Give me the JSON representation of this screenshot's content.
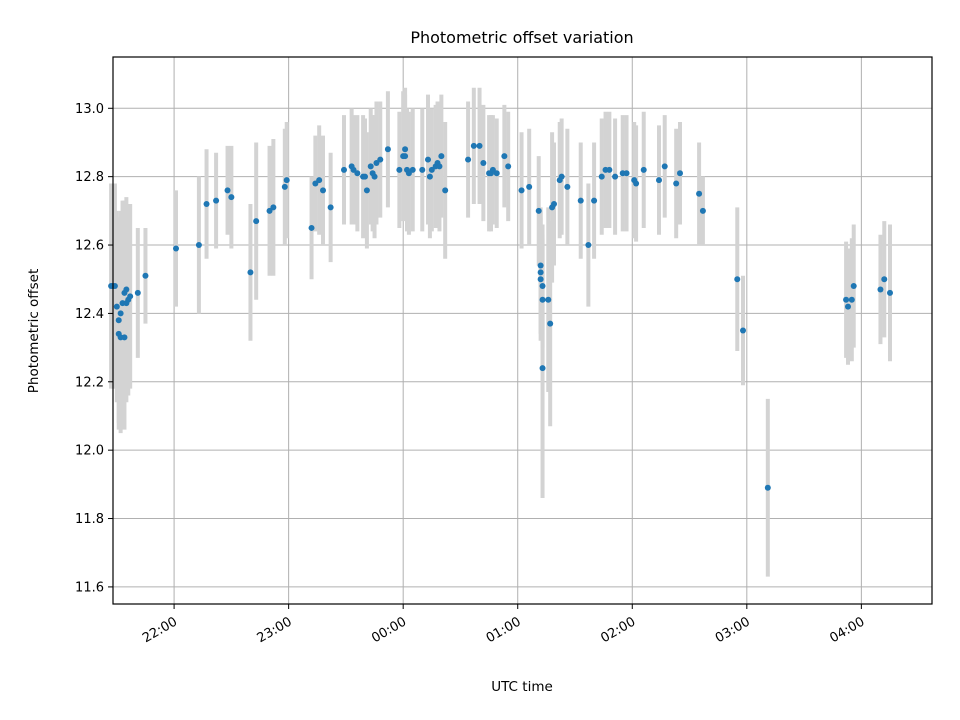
{
  "chart_data": {
    "type": "scatter",
    "title": "Photometric offset variation",
    "xlabel": "UTC time",
    "ylabel": "Photometric offset",
    "xlim": [
      "21:28",
      "04:37"
    ],
    "ylim": [
      11.55,
      13.15
    ],
    "x_ticks": [
      "22:00",
      "23:00",
      "00:00",
      "01:00",
      "02:00",
      "03:00",
      "04:00"
    ],
    "y_ticks": [
      "11.6",
      "11.8",
      "12.0",
      "12.2",
      "12.4",
      "12.6",
      "12.8",
      "13.0"
    ],
    "grid": true,
    "colors": {
      "point": "#1f77b4",
      "errorbar": "#d3d3d3",
      "grid": "#b0b0b0"
    },
    "series": [
      {
        "points": [
          {
            "x": "21:27",
            "y": 12.48,
            "yerr": 0.3
          },
          {
            "x": "21:28",
            "y": 12.48,
            "yerr": 0.3
          },
          {
            "x": "21:29",
            "y": 12.48,
            "yerr": 0.3
          },
          {
            "x": "21:30",
            "y": 12.42,
            "yerr": 0.28
          },
          {
            "x": "21:31",
            "y": 12.34,
            "yerr": 0.28
          },
          {
            "x": "21:31",
            "y": 12.38,
            "yerr": 0.3
          },
          {
            "x": "21:32",
            "y": 12.33,
            "yerr": 0.28
          },
          {
            "x": "21:32",
            "y": 12.4,
            "yerr": 0.3
          },
          {
            "x": "21:33",
            "y": 12.43,
            "yerr": 0.3
          },
          {
            "x": "21:34",
            "y": 12.46,
            "yerr": 0.27
          },
          {
            "x": "21:34",
            "y": 12.33,
            "yerr": 0.27
          },
          {
            "x": "21:35",
            "y": 12.47,
            "yerr": 0.27
          },
          {
            "x": "21:35",
            "y": 12.43,
            "yerr": 0.29
          },
          {
            "x": "21:36",
            "y": 12.44,
            "yerr": 0.28
          },
          {
            "x": "21:37",
            "y": 12.45,
            "yerr": 0.27
          },
          {
            "x": "21:41",
            "y": 12.46,
            "yerr": 0.19
          },
          {
            "x": "21:45",
            "y": 12.51,
            "yerr": 0.14
          },
          {
            "x": "22:01",
            "y": 12.59,
            "yerr": 0.17
          },
          {
            "x": "22:13",
            "y": 12.6,
            "yerr": 0.2
          },
          {
            "x": "22:17",
            "y": 12.72,
            "yerr": 0.16
          },
          {
            "x": "22:22",
            "y": 12.73,
            "yerr": 0.14
          },
          {
            "x": "22:28",
            "y": 12.76,
            "yerr": 0.13
          },
          {
            "x": "22:30",
            "y": 12.74,
            "yerr": 0.15
          },
          {
            "x": "22:40",
            "y": 12.52,
            "yerr": 0.2
          },
          {
            "x": "22:43",
            "y": 12.67,
            "yerr": 0.23
          },
          {
            "x": "22:50",
            "y": 12.7,
            "yerr": 0.19
          },
          {
            "x": "22:52",
            "y": 12.71,
            "yerr": 0.2
          },
          {
            "x": "22:58",
            "y": 12.77,
            "yerr": 0.17
          },
          {
            "x": "22:59",
            "y": 12.79,
            "yerr": 0.17
          },
          {
            "x": "23:12",
            "y": 12.65,
            "yerr": 0.15
          },
          {
            "x": "23:14",
            "y": 12.78,
            "yerr": 0.14
          },
          {
            "x": "23:16",
            "y": 12.79,
            "yerr": 0.16
          },
          {
            "x": "23:18",
            "y": 12.76,
            "yerr": 0.16
          },
          {
            "x": "23:22",
            "y": 12.71,
            "yerr": 0.16
          },
          {
            "x": "23:29",
            "y": 12.82,
            "yerr": 0.16
          },
          {
            "x": "23:33",
            "y": 12.83,
            "yerr": 0.17
          },
          {
            "x": "23:34",
            "y": 12.82,
            "yerr": 0.16
          },
          {
            "x": "23:36",
            "y": 12.81,
            "yerr": 0.17
          },
          {
            "x": "23:39",
            "y": 12.8,
            "yerr": 0.18
          },
          {
            "x": "23:40",
            "y": 12.8,
            "yerr": 0.17
          },
          {
            "x": "23:41",
            "y": 12.76,
            "yerr": 0.17
          },
          {
            "x": "23:43",
            "y": 12.83,
            "yerr": 0.17
          },
          {
            "x": "23:44",
            "y": 12.81,
            "yerr": 0.17
          },
          {
            "x": "23:45",
            "y": 12.8,
            "yerr": 0.18
          },
          {
            "x": "23:46",
            "y": 12.84,
            "yerr": 0.18
          },
          {
            "x": "23:48",
            "y": 12.85,
            "yerr": 0.17
          },
          {
            "x": "23:52",
            "y": 12.88,
            "yerr": 0.17
          },
          {
            "x": "23:58",
            "y": 12.82,
            "yerr": 0.17
          },
          {
            "x": "00:00",
            "y": 12.86,
            "yerr": 0.19
          },
          {
            "x": "00:01",
            "y": 12.88,
            "yerr": 0.18
          },
          {
            "x": "00:01",
            "y": 12.86,
            "yerr": 0.18
          },
          {
            "x": "00:02",
            "y": 12.82,
            "yerr": 0.18
          },
          {
            "x": "00:03",
            "y": 12.81,
            "yerr": 0.18
          },
          {
            "x": "00:05",
            "y": 12.82,
            "yerr": 0.18
          },
          {
            "x": "00:10",
            "y": 12.82,
            "yerr": 0.18
          },
          {
            "x": "00:13",
            "y": 12.85,
            "yerr": 0.19
          },
          {
            "x": "00:14",
            "y": 12.8,
            "yerr": 0.18
          },
          {
            "x": "00:15",
            "y": 12.82,
            "yerr": 0.18
          },
          {
            "x": "00:17",
            "y": 12.83,
            "yerr": 0.18
          },
          {
            "x": "00:18",
            "y": 12.84,
            "yerr": 0.18
          },
          {
            "x": "00:19",
            "y": 12.83,
            "yerr": 0.19
          },
          {
            "x": "00:20",
            "y": 12.86,
            "yerr": 0.18
          },
          {
            "x": "00:22",
            "y": 12.76,
            "yerr": 0.2
          },
          {
            "x": "00:34",
            "y": 12.85,
            "yerr": 0.17
          },
          {
            "x": "00:37",
            "y": 12.89,
            "yerr": 0.17
          },
          {
            "x": "00:40",
            "y": 12.89,
            "yerr": 0.17
          },
          {
            "x": "00:42",
            "y": 12.84,
            "yerr": 0.17
          },
          {
            "x": "00:45",
            "y": 12.81,
            "yerr": 0.17
          },
          {
            "x": "00:46",
            "y": 12.81,
            "yerr": 0.17
          },
          {
            "x": "00:47",
            "y": 12.82,
            "yerr": 0.16
          },
          {
            "x": "00:49",
            "y": 12.81,
            "yerr": 0.16
          },
          {
            "x": "00:53",
            "y": 12.86,
            "yerr": 0.15
          },
          {
            "x": "00:55",
            "y": 12.83,
            "yerr": 0.16
          },
          {
            "x": "01:02",
            "y": 12.76,
            "yerr": 0.17
          },
          {
            "x": "01:06",
            "y": 12.77,
            "yerr": 0.17
          },
          {
            "x": "01:11",
            "y": 12.7,
            "yerr": 0.16
          },
          {
            "x": "01:12",
            "y": 12.54,
            "yerr": 0.17
          },
          {
            "x": "01:12",
            "y": 12.52,
            "yerr": 0.18
          },
          {
            "x": "01:12",
            "y": 12.5,
            "yerr": 0.18
          },
          {
            "x": "01:13",
            "y": 12.48,
            "yerr": 0.18
          },
          {
            "x": "01:13",
            "y": 12.44,
            "yerr": 0.19
          },
          {
            "x": "01:13",
            "y": 12.24,
            "yerr": 0.38
          },
          {
            "x": "01:16",
            "y": 12.44,
            "yerr": 0.27
          },
          {
            "x": "01:17",
            "y": 12.37,
            "yerr": 0.3
          },
          {
            "x": "01:18",
            "y": 12.71,
            "yerr": 0.22
          },
          {
            "x": "01:19",
            "y": 12.72,
            "yerr": 0.18
          },
          {
            "x": "01:22",
            "y": 12.79,
            "yerr": 0.17
          },
          {
            "x": "01:23",
            "y": 12.8,
            "yerr": 0.17
          },
          {
            "x": "01:26",
            "y": 12.77,
            "yerr": 0.17
          },
          {
            "x": "01:33",
            "y": 12.73,
            "yerr": 0.17
          },
          {
            "x": "01:37",
            "y": 12.6,
            "yerr": 0.18
          },
          {
            "x": "01:40",
            "y": 12.73,
            "yerr": 0.17
          },
          {
            "x": "01:44",
            "y": 12.8,
            "yerr": 0.17
          },
          {
            "x": "01:46",
            "y": 12.82,
            "yerr": 0.17
          },
          {
            "x": "01:48",
            "y": 12.82,
            "yerr": 0.17
          },
          {
            "x": "01:51",
            "y": 12.8,
            "yerr": 0.17
          },
          {
            "x": "01:55",
            "y": 12.81,
            "yerr": 0.17
          },
          {
            "x": "01:57",
            "y": 12.81,
            "yerr": 0.17
          },
          {
            "x": "02:01",
            "y": 12.79,
            "yerr": 0.17
          },
          {
            "x": "02:02",
            "y": 12.78,
            "yerr": 0.17
          },
          {
            "x": "02:06",
            "y": 12.82,
            "yerr": 0.17
          },
          {
            "x": "02:14",
            "y": 12.79,
            "yerr": 0.16
          },
          {
            "x": "02:17",
            "y": 12.83,
            "yerr": 0.15
          },
          {
            "x": "02:23",
            "y": 12.78,
            "yerr": 0.16
          },
          {
            "x": "02:25",
            "y": 12.81,
            "yerr": 0.15
          },
          {
            "x": "02:35",
            "y": 12.75,
            "yerr": 0.15
          },
          {
            "x": "02:37",
            "y": 12.7,
            "yerr": 0.1
          },
          {
            "x": "02:55",
            "y": 12.5,
            "yerr": 0.21
          },
          {
            "x": "02:58",
            "y": 12.35,
            "yerr": 0.16
          },
          {
            "x": "03:11",
            "y": 11.89,
            "yerr": 0.26
          },
          {
            "x": "03:52",
            "y": 12.44,
            "yerr": 0.17
          },
          {
            "x": "03:53",
            "y": 12.42,
            "yerr": 0.17
          },
          {
            "x": "03:55",
            "y": 12.44,
            "yerr": 0.18
          },
          {
            "x": "03:56",
            "y": 12.48,
            "yerr": 0.18
          },
          {
            "x": "04:10",
            "y": 12.47,
            "yerr": 0.16
          },
          {
            "x": "04:12",
            "y": 12.5,
            "yerr": 0.17
          },
          {
            "x": "04:15",
            "y": 12.46,
            "yerr": 0.2
          }
        ]
      }
    ]
  }
}
